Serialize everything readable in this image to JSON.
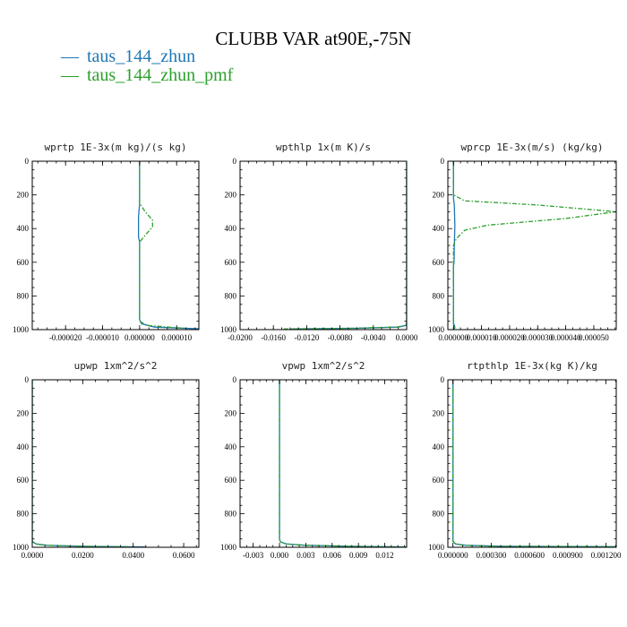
{
  "title": "CLUBB VAR at90E,-75N",
  "colors": {
    "zhun": "#1f77b4",
    "zhun_pmf": "#2ca02c"
  },
  "legend": [
    {
      "marker": "—",
      "label": "taus_144_zhun",
      "color": "#1f77b4"
    },
    {
      "marker": "—",
      "label": "taus_144_zhun_pmf",
      "color": "#2ca02c"
    }
  ],
  "chart_data": [
    {
      "type": "line",
      "title": "wprtp  1E-3x(m kg)/(s kg)",
      "xlim": [
        -2.9e-05,
        1.6e-05
      ],
      "ylim": [
        1000,
        0
      ],
      "xticks": [
        -2e-05,
        -1e-05,
        0.0,
        1e-05
      ],
      "xtick_labels": [
        "-0.000020",
        "-0.000010",
        "0.000000",
        "0.000010"
      ],
      "yticks": [
        0,
        200,
        400,
        600,
        800,
        1000
      ],
      "ytick_labels": [
        "0",
        "200",
        "400",
        "600",
        "800",
        "1000"
      ],
      "series": [
        {
          "name": "taus_144_zhun",
          "color": "#1f77b4",
          "x": [
            0.0,
            0.0,
            -3e-07,
            -3e-07,
            0.0,
            0.0,
            5e-07,
            4e-06,
            1.6e-05
          ],
          "y": [
            0,
            250,
            330,
            450,
            480,
            940,
            965,
            985,
            995
          ]
        },
        {
          "name": "taus_144_zhun_pmf",
          "color": "#2ca02c",
          "dashed": true,
          "x": [
            0.0,
            0.0,
            1.5e-06,
            3.5e-06,
            3.5e-06,
            1.5e-06,
            0.0,
            0.0,
            2e-06,
            1.2e-05
          ],
          "y": [
            0,
            250,
            300,
            350,
            390,
            440,
            480,
            950,
            975,
            992
          ]
        }
      ]
    },
    {
      "type": "line",
      "title": "wpthlp  1x(m K)/s",
      "xlim": [
        -0.02,
        0.0
      ],
      "ylim": [
        1000,
        0
      ],
      "xticks": [
        -0.02,
        -0.016,
        -0.012,
        -0.008,
        -0.004,
        0.0
      ],
      "xtick_labels": [
        "-0.0200",
        "-0.0160",
        "-0.0120",
        "-0.0080",
        "-0.0040",
        "0.0000"
      ],
      "yticks": [
        0,
        200,
        400,
        600,
        800,
        1000
      ],
      "ytick_labels": [
        "0",
        "200",
        "400",
        "600",
        "800",
        "1000"
      ],
      "series": [
        {
          "name": "taus_144_zhun",
          "color": "#1f77b4",
          "x": [
            0.0,
            0.0,
            -0.0001,
            -0.001,
            -0.006,
            -0.014
          ],
          "y": [
            0,
            960,
            975,
            985,
            992,
            996
          ]
        },
        {
          "name": "taus_144_zhun_pmf",
          "color": "#2ca02c",
          "dashed": true,
          "x": [
            0.0,
            0.0,
            -0.0001,
            -0.0012,
            -0.007,
            -0.015
          ],
          "y": [
            0,
            960,
            975,
            985,
            992,
            996
          ]
        }
      ]
    },
    {
      "type": "line",
      "title": "wprcp  1E-3x(m/s) (kg/kg)",
      "xlim": [
        -2e-06,
        5.8e-05
      ],
      "ylim": [
        1000,
        0
      ],
      "xticks": [
        0.0,
        1e-05,
        2e-05,
        3e-05,
        4e-05,
        5e-05
      ],
      "xtick_labels": [
        "0.000000",
        "0.000010",
        "0.000020",
        "0.000030",
        "0.000040",
        "0.000050"
      ],
      "yticks": [
        0,
        200,
        400,
        600,
        800,
        1000
      ],
      "ytick_labels": [
        "0",
        "200",
        "400",
        "600",
        "800",
        "1000"
      ],
      "series": [
        {
          "name": "taus_144_zhun",
          "color": "#1f77b4",
          "x": [
            0.0,
            0.0,
            3e-07,
            5e-07,
            3e-07,
            2e-07,
            0.0,
            0.0,
            5e-07,
            0.0
          ],
          "y": [
            0,
            220,
            260,
            380,
            500,
            600,
            620,
            960,
            985,
            1000
          ]
        },
        {
          "name": "taus_144_zhun_pmf",
          "color": "#2ca02c",
          "dashed": true,
          "x": [
            0.0,
            0.0,
            4e-06,
            3e-05,
            5.8e-05,
            4e-05,
            1.2e-05,
            4e-06,
            1e-06,
            0.0,
            0.0,
            5e-07
          ],
          "y": [
            0,
            200,
            235,
            260,
            300,
            340,
            380,
            410,
            460,
            500,
            970,
            995
          ]
        }
      ]
    },
    {
      "type": "line",
      "title": "upwp  1xm^2/s^2",
      "xlim": [
        0.0,
        0.066
      ],
      "ylim": [
        1000,
        0
      ],
      "xticks": [
        0.0,
        0.02,
        0.04,
        0.06
      ],
      "xtick_labels": [
        "0.0000",
        "0.0200",
        "0.0400",
        "0.0600"
      ],
      "yticks": [
        0,
        200,
        400,
        600,
        800,
        1000
      ],
      "ytick_labels": [
        "0",
        "200",
        "400",
        "600",
        "800",
        "1000"
      ],
      "series": [
        {
          "name": "taus_144_zhun",
          "color": "#1f77b4",
          "x": [
            0.0,
            0.0,
            0.0015,
            0.006,
            0.02,
            0.045
          ],
          "y": [
            0,
            965,
            980,
            988,
            994,
            998
          ]
        },
        {
          "name": "taus_144_zhun_pmf",
          "color": "#2ca02c",
          "dashed": true,
          "x": [
            0.0,
            0.0,
            0.0012,
            0.005,
            0.018,
            0.04
          ],
          "y": [
            0,
            965,
            980,
            988,
            994,
            998
          ]
        }
      ]
    },
    {
      "type": "line",
      "title": "vpwp  1xm^2/s^2",
      "xlim": [
        -0.0045,
        0.0145
      ],
      "ylim": [
        1000,
        0
      ],
      "xticks": [
        -0.003,
        0.0,
        0.003,
        0.006,
        0.009,
        0.012
      ],
      "xtick_labels": [
        "-0.003",
        "0.000",
        "0.003",
        "0.006",
        "0.009",
        "0.012"
      ],
      "yticks": [
        0,
        200,
        400,
        600,
        800,
        1000
      ],
      "ytick_labels": [
        "0",
        "200",
        "400",
        "600",
        "800",
        "1000"
      ],
      "series": [
        {
          "name": "taus_144_zhun",
          "color": "#1f77b4",
          "x": [
            0.0,
            0.0,
            0.0001,
            0.0008,
            0.003,
            0.008,
            0.0145
          ],
          "y": [
            0,
            950,
            968,
            980,
            988,
            994,
            998
          ]
        },
        {
          "name": "taus_144_zhun_pmf",
          "color": "#2ca02c",
          "dashed": true,
          "x": [
            0.0,
            0.0,
            0.0001,
            0.0007,
            0.0028,
            0.0075,
            0.014
          ],
          "y": [
            0,
            950,
            968,
            980,
            988,
            994,
            998
          ]
        }
      ]
    },
    {
      "type": "line",
      "title": "rtpthlp  1E-3x(kg K)/kg",
      "xlim": [
        -4e-05,
        0.00128
      ],
      "ylim": [
        1000,
        0
      ],
      "xticks": [
        0.0,
        0.0003,
        0.0006,
        0.0009,
        0.0012
      ],
      "xtick_labels": [
        "0.000000",
        "0.000300",
        "0.000600",
        "0.000900",
        "0.001200"
      ],
      "yticks": [
        0,
        200,
        400,
        600,
        800,
        1000
      ],
      "ytick_labels": [
        "0",
        "200",
        "400",
        "600",
        "800",
        "1000"
      ],
      "series": [
        {
          "name": "taus_144_zhun",
          "color": "#1f77b4",
          "x": [
            0.0,
            0.0,
            2e-05,
            0.0001,
            0.0004,
            0.00128
          ],
          "y": [
            0,
            965,
            980,
            988,
            994,
            997
          ]
        },
        {
          "name": "taus_144_zhun_pmf",
          "color": "#2ca02c",
          "dashed": true,
          "x": [
            0.0,
            0.0,
            2e-05,
            8e-05,
            0.0003,
            0.00128
          ],
          "y": [
            0,
            965,
            980,
            988,
            994,
            997
          ]
        }
      ]
    }
  ]
}
